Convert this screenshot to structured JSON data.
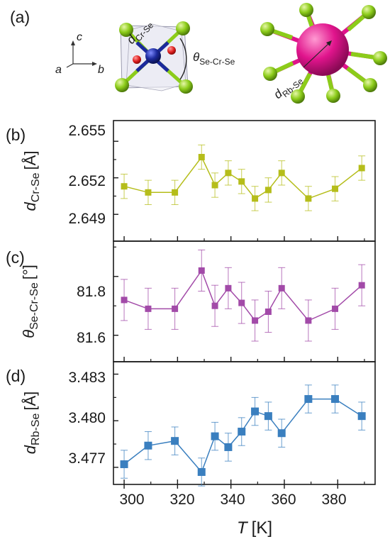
{
  "panel_labels": {
    "a": "(a)",
    "b": "(b)",
    "c": "(c)",
    "d": "(d)"
  },
  "structure": {
    "axes": {
      "c": "c",
      "a": "a",
      "b": "b"
    },
    "d_cr_se": {
      "main": "d",
      "sub": "Cr-Se"
    },
    "theta": {
      "main": "θ",
      "sub": "Se-Cr-Se"
    },
    "d_rb_se": {
      "main": "d",
      "sub": "Rb-Se"
    }
  },
  "colors": {
    "b": "#b5bd1a",
    "c": "#a24aa8",
    "d": "#3a7fbf",
    "se_atom": "#8ccc1a",
    "cr_atom": "#1c2a9c",
    "rb_atom": "#e0148c",
    "o_atom": "#e02020"
  },
  "chart_data": [
    {
      "panel": "(b)",
      "type": "line",
      "ylabel_main": "d",
      "ylabel_sub": "Cr-Se",
      "ylabel_unit": "[Å]",
      "yticks": [
        "2.655",
        "2.652",
        "2.649"
      ],
      "ylim": [
        2.6468,
        2.6567
      ],
      "x": [
        300,
        309,
        319,
        329,
        334,
        339,
        344,
        349,
        354,
        359,
        369,
        379,
        389
      ],
      "y": [
        2.6513,
        2.6508,
        2.6508,
        2.6537,
        2.6514,
        2.6524,
        2.6517,
        2.6503,
        2.651,
        2.6524,
        2.6503,
        2.6511,
        2.6528
      ],
      "yerr": [
        0.001,
        0.001,
        0.001,
        0.001,
        0.001,
        0.001,
        0.001,
        0.001,
        0.001,
        0.001,
        0.001,
        0.001,
        0.001
      ],
      "marker": "square"
    },
    {
      "panel": "(c)",
      "type": "line",
      "ylabel_main": "θ",
      "ylabel_sub": "Se-Cr-Se",
      "ylabel_unit": "[°]",
      "yticks": [
        "81.8",
        "81.6"
      ],
      "ylim": [
        81.51,
        81.92
      ],
      "x": [
        300,
        309,
        319,
        329,
        334,
        339,
        344,
        349,
        354,
        359,
        369,
        379,
        389
      ],
      "y": [
        81.72,
        81.69,
        81.69,
        81.82,
        81.7,
        81.76,
        81.71,
        81.65,
        81.68,
        81.76,
        81.65,
        81.69,
        81.77
      ],
      "yerr": [
        0.07,
        0.07,
        0.07,
        0.07,
        0.07,
        0.07,
        0.07,
        0.07,
        0.07,
        0.07,
        0.07,
        0.07,
        0.07
      ],
      "marker": "square"
    },
    {
      "panel": "(d)",
      "type": "line",
      "ylabel_main": "d",
      "ylabel_sub": "Rb-Se",
      "ylabel_unit": "[Å]",
      "yticks": [
        "3.483",
        "3.480",
        "3.477"
      ],
      "ylim": [
        3.4759,
        3.4838
      ],
      "x": [
        300,
        309,
        319,
        329,
        334,
        339,
        344,
        349,
        354,
        359,
        369,
        379,
        389
      ],
      "y": [
        3.4772,
        3.4784,
        3.4787,
        3.4767,
        3.479,
        3.4783,
        3.4793,
        3.4806,
        3.4803,
        3.4792,
        3.4814,
        3.4814,
        3.4803
      ],
      "yerr": [
        0.0009,
        0.0009,
        0.0009,
        0.0009,
        0.0009,
        0.0009,
        0.0009,
        0.0009,
        0.0009,
        0.0009,
        0.0009,
        0.0009,
        0.0009
      ],
      "marker": "square"
    }
  ],
  "x_axis": {
    "label_main": "T",
    "label_unit": "[K]",
    "ticks": [
      "300",
      "320",
      "340",
      "360",
      "380"
    ],
    "xlim": [
      296,
      394
    ]
  }
}
